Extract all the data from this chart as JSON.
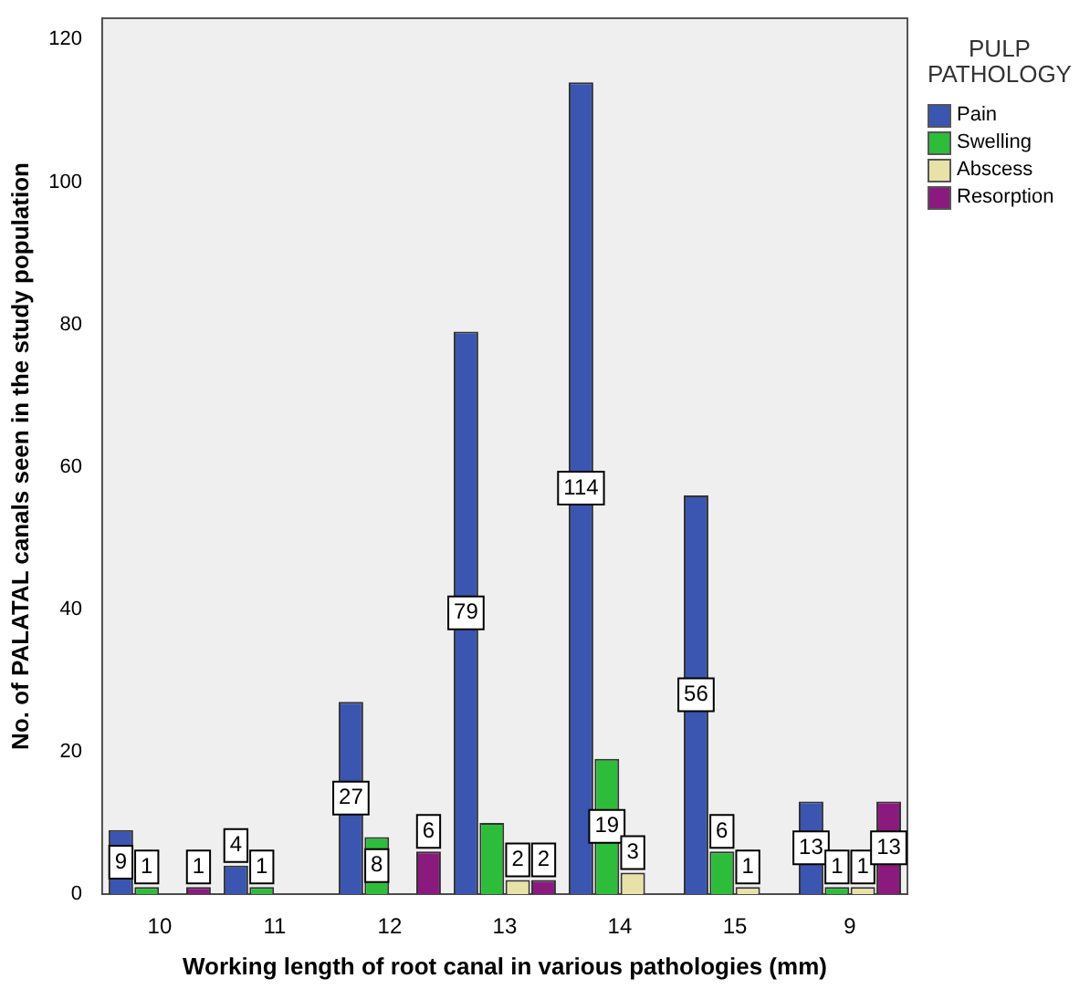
{
  "chart_data": {
    "type": "bar",
    "xlabel": "Working length of root canal in various pathologies (mm)",
    "ylabel": "No. of PALATAL canals seen in the study population",
    "legend_title": "PULP PATHOLOGY",
    "legend": "right",
    "grid": false,
    "categories": [
      "10",
      "11",
      "12",
      "13",
      "14",
      "15",
      "9"
    ],
    "series": [
      {
        "name": "Pain",
        "color": "#3a56b0",
        "values": [
          9,
          4,
          27,
          79,
          114,
          56,
          13
        ],
        "value_labels": [
          "9",
          "4",
          "27",
          "79",
          "114",
          "56",
          "13"
        ]
      },
      {
        "name": "Swelling",
        "color": "#2dbd3a",
        "values": [
          1,
          1,
          8,
          10,
          19,
          6,
          1
        ],
        "value_labels": [
          "1",
          "1",
          "8",
          null,
          "19",
          "6",
          "1"
        ]
      },
      {
        "name": "Abscess",
        "color": "#e8e2a8",
        "values": [
          null,
          null,
          null,
          2,
          3,
          1,
          1
        ],
        "value_labels": [
          null,
          null,
          null,
          "2",
          "3",
          "1",
          "1"
        ]
      },
      {
        "name": "Resorption",
        "color": "#8b1a7e",
        "values": [
          1,
          null,
          6,
          2,
          null,
          null,
          13
        ],
        "value_labels": [
          "1",
          null,
          "6",
          "2",
          null,
          null,
          "13"
        ]
      }
    ],
    "ylim": [
      0,
      123
    ],
    "yticks": [
      0,
      20,
      40,
      60,
      80,
      100,
      120
    ]
  }
}
